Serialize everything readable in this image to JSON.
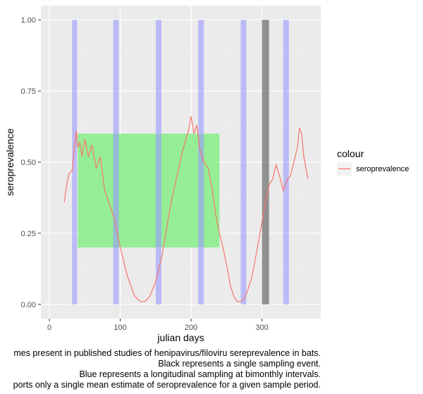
{
  "chart_data": {
    "type": "line",
    "title": "",
    "xlabel": "julian days",
    "ylabel": "seroprevalence",
    "xlim": [
      -12,
      383
    ],
    "ylim": [
      -0.05,
      1.05
    ],
    "x_ticks": [
      0,
      100,
      200,
      300
    ],
    "x_tick_labels": [
      "0",
      "100",
      "200",
      "300"
    ],
    "y_ticks": [
      0,
      0.25,
      0.5,
      0.75,
      1
    ],
    "y_tick_labels": [
      "0.00",
      "0.25",
      "0.50",
      "0.75",
      "1.00"
    ],
    "grid": true,
    "legend": {
      "title": "colour",
      "placement": "right",
      "entries": [
        "seroprevalence"
      ]
    },
    "series": [
      {
        "name": "seroprevalence",
        "color": "#F8766D",
        "x": [
          21,
          25,
          28,
          32,
          35,
          38,
          40,
          43,
          46,
          50,
          55,
          60,
          66,
          72,
          78,
          85,
          92,
          100,
          110,
          120,
          128,
          135,
          142,
          150,
          158,
          165,
          172,
          180,
          188,
          196,
          200,
          204,
          208,
          212,
          218,
          224,
          230,
          235,
          240,
          245,
          250,
          255,
          260,
          265,
          270,
          275,
          280,
          285,
          290,
          295,
          300,
          305,
          310,
          315,
          320,
          325,
          330,
          333,
          336,
          340,
          345,
          350,
          353,
          356,
          359,
          362,
          365
        ],
        "y": [
          0.36,
          0.43,
          0.46,
          0.47,
          0.54,
          0.61,
          0.55,
          0.57,
          0.52,
          0.58,
          0.52,
          0.56,
          0.48,
          0.52,
          0.4,
          0.35,
          0.3,
          0.2,
          0.1,
          0.03,
          0.01,
          0.01,
          0.03,
          0.08,
          0.16,
          0.26,
          0.36,
          0.45,
          0.54,
          0.61,
          0.66,
          0.6,
          0.63,
          0.55,
          0.5,
          0.48,
          0.4,
          0.31,
          0.25,
          0.2,
          0.14,
          0.07,
          0.03,
          0.01,
          0.01,
          0.02,
          0.05,
          0.09,
          0.15,
          0.22,
          0.29,
          0.36,
          0.42,
          0.44,
          0.49,
          0.45,
          0.4,
          0.42,
          0.44,
          0.45,
          0.5,
          0.55,
          0.62,
          0.6,
          0.52,
          0.48,
          0.44
        ]
      }
    ],
    "annotations": [
      {
        "type": "rect",
        "color": "#90EE90",
        "x": [
          40,
          240
        ],
        "y": [
          0.2,
          0.6
        ]
      },
      {
        "type": "vband",
        "color": "#9999FF",
        "x": [
          32,
          39
        ]
      },
      {
        "type": "vband",
        "color": "#9999FF",
        "x": [
          90,
          98
        ]
      },
      {
        "type": "vband",
        "color": "#9999FF",
        "x": [
          150,
          158
        ]
      },
      {
        "type": "vband",
        "color": "#9999FF",
        "x": [
          210,
          218
        ]
      },
      {
        "type": "vband",
        "color": "#9999FF",
        "x": [
          270,
          278
        ]
      },
      {
        "type": "vband",
        "color": "#808080",
        "x": [
          300,
          310
        ]
      },
      {
        "type": "vband",
        "color": "#9999FF",
        "x": [
          330,
          338
        ]
      }
    ]
  },
  "caption": {
    "line1": "mes present in published studies of henipavirus/filoviru sereprevalence in bats.",
    "line2": "Black represents a single sampling event.",
    "line3": "Blue represents a longitudinal sampling at bimonthly intervals.",
    "line4": "ports only a single mean estimate of seroprevalence for a given sample period."
  }
}
